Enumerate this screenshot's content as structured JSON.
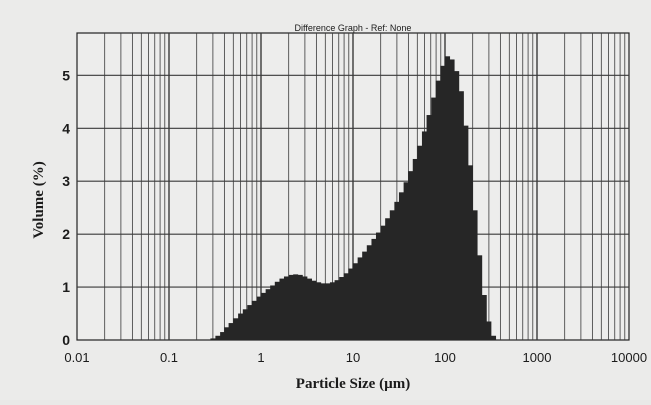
{
  "chart_data": {
    "type": "bar",
    "title": "Difference Graph - Ref: None",
    "xlabel": "Particle Size (µm)",
    "ylabel": "Volume (%)",
    "x_scale": "log",
    "xlim": [
      0.01,
      10000
    ],
    "ylim": [
      0,
      5.8
    ],
    "x_ticks": [
      0.01,
      0.1,
      1,
      10,
      100,
      1000,
      10000
    ],
    "x_tick_labels": [
      "0.01",
      "0.1",
      "1",
      "10",
      "100",
      "1000",
      "10000"
    ],
    "y_ticks": [
      0,
      1,
      2,
      3,
      4,
      5
    ],
    "y_tick_labels": [
      "0",
      "1",
      "2",
      "3",
      "4",
      "5"
    ],
    "grid": true,
    "series": [
      {
        "x": [
          0.3,
          0.34,
          0.38,
          0.42,
          0.47,
          0.53,
          0.6,
          0.67,
          0.75,
          0.84,
          0.95,
          1.06,
          1.19,
          1.33,
          1.5,
          1.68,
          1.88,
          2.11,
          2.37,
          2.66,
          2.98,
          3.35,
          3.76,
          4.21,
          4.73,
          5.3,
          5.95,
          6.68,
          7.5,
          8.4,
          9.4,
          10.6,
          11.9,
          13.3,
          15,
          16.8,
          18.8,
          21.1,
          23.7,
          26.6,
          29.8,
          33.5,
          37.6,
          42.1,
          47.3,
          53,
          59.5,
          66.8,
          75,
          84,
          94,
          106,
          119,
          133,
          150,
          168,
          188,
          211,
          237,
          266,
          298,
          335
        ],
        "values": [
          0.03,
          0.08,
          0.15,
          0.24,
          0.32,
          0.41,
          0.5,
          0.58,
          0.66,
          0.74,
          0.82,
          0.89,
          0.96,
          1.03,
          1.1,
          1.16,
          1.2,
          1.23,
          1.24,
          1.23,
          1.2,
          1.16,
          1.12,
          1.09,
          1.07,
          1.07,
          1.09,
          1.13,
          1.19,
          1.26,
          1.35,
          1.45,
          1.56,
          1.67,
          1.79,
          1.91,
          2.03,
          2.16,
          2.3,
          2.45,
          2.61,
          2.79,
          2.98,
          3.19,
          3.42,
          3.67,
          3.94,
          4.25,
          4.58,
          4.9,
          5.18,
          5.36,
          5.3,
          5.08,
          4.7,
          4.05,
          3.3,
          2.45,
          1.6,
          0.85,
          0.35,
          0.08
        ]
      }
    ]
  }
}
